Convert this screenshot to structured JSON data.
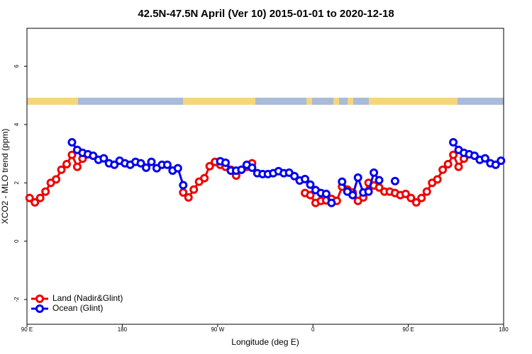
{
  "chart_data": {
    "type": "line",
    "title": "42.5N-47.5N April (Ver 10)   2015-01-01 to 2020-12-18",
    "x_label": "Longitude (deg E)",
    "y_label": "XCO2 - MLO trend (ppm)",
    "xlim": [
      90,
      540
    ],
    "xticks": [
      {
        "value": 90,
        "label": "90 E"
      },
      180,
      {
        "value": 270,
        "label": "90 W"
      },
      {
        "value": 360,
        "label": "0"
      },
      {
        "value": 450,
        "label": "90 E"
      },
      {
        "value": 540,
        "label": "180"
      }
    ],
    "ylim": [
      -2.85,
      7.3
    ],
    "yticks": [
      -2,
      0,
      2,
      4,
      6
    ],
    "legend": "bottom-left",
    "series": [
      {
        "name": "Land (Nadir&Glint)",
        "color": "#ee0000",
        "x": [
          92.5,
          97.5,
          102.5,
          107.5,
          112.5,
          117.5,
          122.5,
          127.5,
          132.5,
          137.5,
          142.5,
          147.5,
          237.5,
          242.5,
          247.5,
          252.5,
          257.5,
          262.5,
          267.5,
          272.5,
          277.5,
          282.5,
          287.5,
          292.5,
          297.5,
          302.5,
          307.5,
          352.5,
          357.5,
          362.5,
          367.5,
          372.5,
          377.5,
          382.5,
          387.5,
          392.5,
          397.5,
          402.5,
          407.5,
          412.5,
          417.5,
          422.5,
          427.5,
          432.5,
          437.5,
          442.5,
          447.5,
          452.5,
          457.5,
          462.5,
          467.5,
          472.5,
          477.5,
          482.5,
          487.5,
          492.5,
          497.5,
          502.5
        ],
        "values": [
          1.48,
          1.33,
          1.48,
          1.7,
          2.0,
          2.12,
          2.45,
          2.64,
          2.96,
          2.55,
          2.83,
          null,
          1.67,
          1.5,
          1.77,
          2.04,
          2.16,
          2.57,
          2.72,
          2.62,
          2.55,
          2.45,
          2.25,
          2.45,
          2.55,
          2.67,
          null,
          1.65,
          1.58,
          1.31,
          1.38,
          1.4,
          1.45,
          1.38,
          1.87,
          1.77,
          1.67,
          1.38,
          1.5,
          2.0,
          1.91,
          1.84,
          1.7,
          1.7,
          1.65,
          1.58,
          1.62,
          1.48,
          1.33,
          1.48,
          1.7,
          2.0,
          2.12,
          2.45,
          2.64,
          2.96,
          2.55,
          2.83
        ]
      },
      {
        "name": "Ocean (Glint)",
        "color": "#0000ee",
        "x": [
          132.5,
          137.5,
          142.5,
          147.5,
          152.5,
          157.5,
          162.5,
          167.5,
          172.5,
          177.5,
          182.5,
          187.5,
          192.5,
          197.5,
          202.5,
          207.5,
          212.5,
          217.5,
          222.5,
          227.5,
          232.5,
          237.5,
          242.5,
          272.5,
          277.5,
          282.5,
          287.5,
          292.5,
          297.5,
          302.5,
          307.5,
          312.5,
          317.5,
          322.5,
          327.5,
          332.5,
          337.5,
          342.5,
          347.5,
          352.5,
          357.5,
          362.5,
          367.5,
          372.5,
          377.5,
          382.5,
          387.5,
          392.5,
          397.5,
          402.5,
          407.5,
          412.5,
          417.5,
          422.5,
          427.5,
          437.5,
          442.5,
          492.5,
          497.5,
          502.5,
          507.5,
          512.5,
          517.5,
          522.5,
          527.5,
          532.5,
          537.5
        ],
        "values": [
          3.39,
          3.13,
          3.03,
          2.98,
          2.93,
          2.79,
          2.84,
          2.67,
          2.62,
          2.76,
          2.67,
          2.62,
          2.72,
          2.67,
          2.52,
          2.72,
          2.5,
          2.62,
          2.62,
          2.42,
          2.5,
          1.92,
          null,
          2.74,
          2.69,
          2.42,
          2.42,
          2.45,
          2.62,
          2.52,
          2.33,
          2.3,
          2.3,
          2.33,
          2.4,
          2.33,
          2.35,
          2.23,
          2.08,
          2.13,
          1.94,
          1.75,
          1.65,
          1.62,
          1.31,
          null,
          2.04,
          1.7,
          1.58,
          2.18,
          1.67,
          1.7,
          2.35,
          2.09,
          null,
          2.06,
          null,
          3.39,
          3.13,
          3.03,
          2.98,
          2.93,
          2.79,
          2.84,
          2.67,
          2.62,
          2.76
        ]
      }
    ]
  }
}
